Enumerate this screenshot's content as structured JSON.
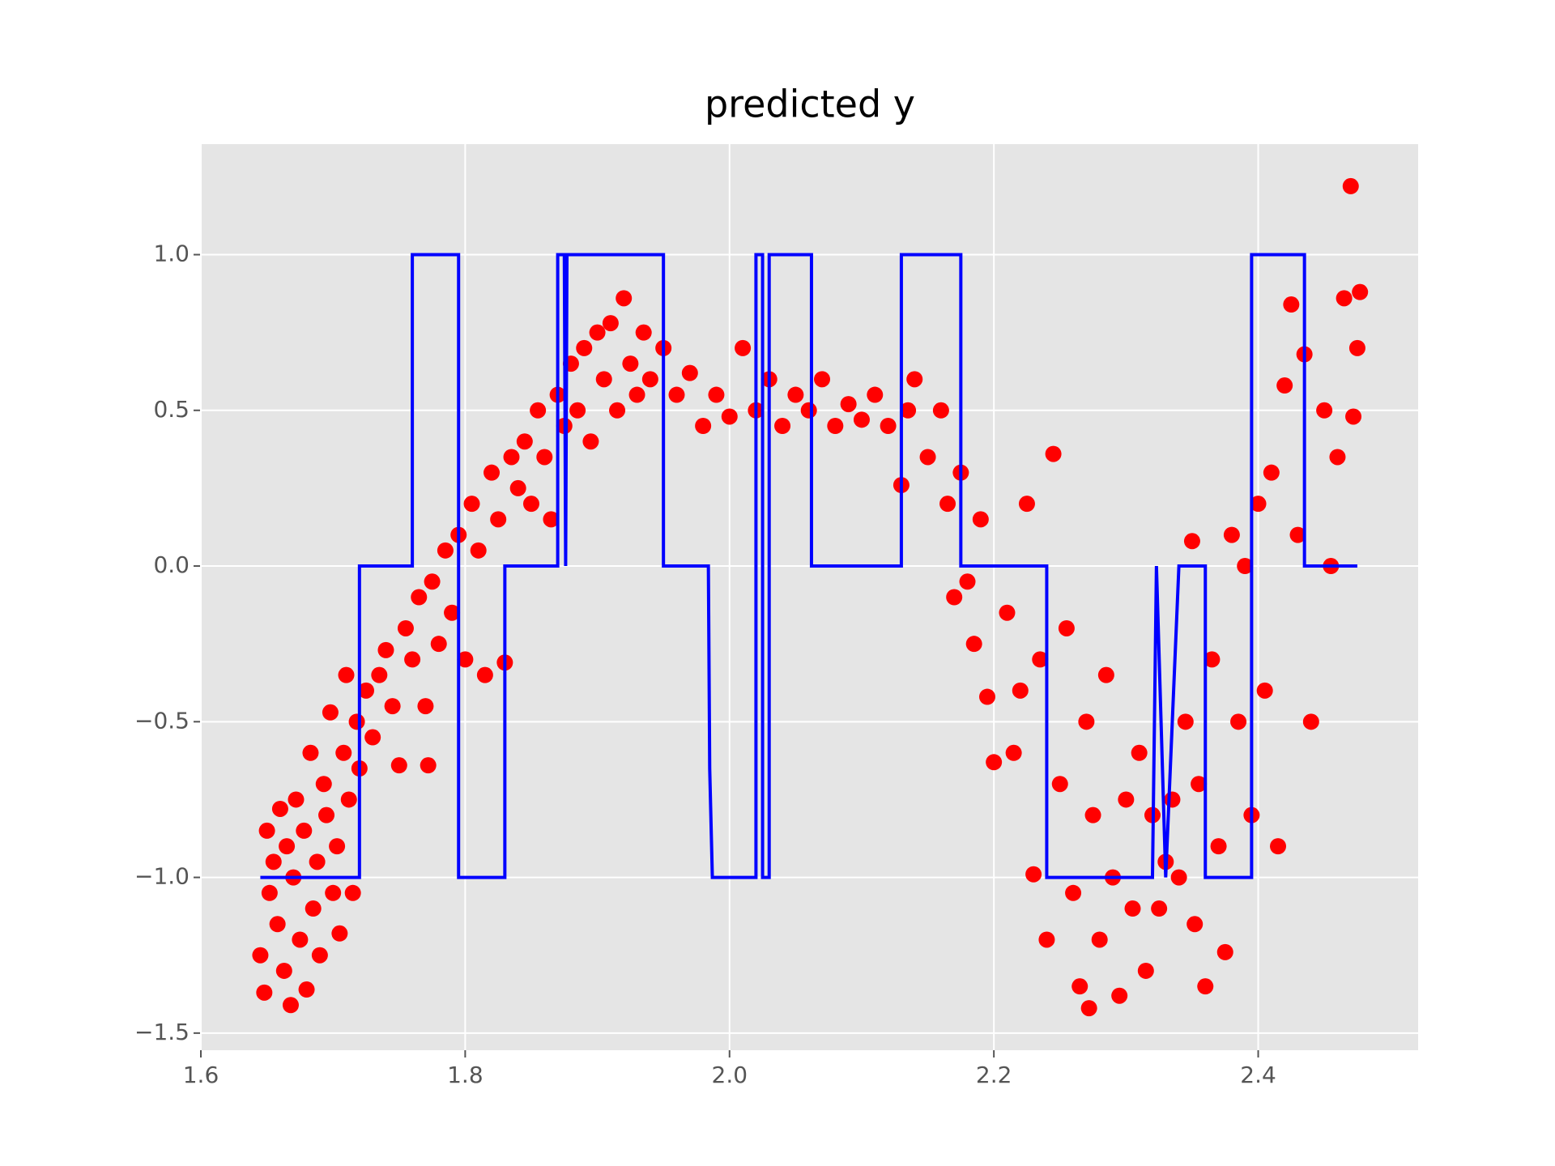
{
  "chart_data": {
    "type": "scatter",
    "title": "predicted y",
    "xlim": [
      1.6,
      2.521
    ],
    "ylim": [
      -1.555,
      1.355
    ],
    "xticks": [
      1.6,
      1.8,
      {
        "value": 2.0,
        "label": "2.0"
      },
      2.2,
      2.4
    ],
    "yticks": [
      {
        "value": -1.5,
        "label": "−1.5"
      },
      {
        "value": -1.0,
        "label": "−1.0"
      },
      {
        "value": -0.5,
        "label": "−0.5"
      },
      {
        "value": 0.0,
        "label": "0.0"
      },
      0.5,
      {
        "value": 1.0,
        "label": "1.0"
      }
    ],
    "grid": true,
    "background": "#e5e5e5",
    "series": [
      {
        "type": "scatter",
        "color": "#ff0000",
        "x": [
          1.645,
          1.648,
          1.65,
          1.652,
          1.655,
          1.658,
          1.66,
          1.663,
          1.665,
          1.668,
          1.67,
          1.672,
          1.675,
          1.678,
          1.68,
          1.683,
          1.685,
          1.688,
          1.69,
          1.693,
          1.695,
          1.698,
          1.7,
          1.703,
          1.705,
          1.708,
          1.71,
          1.712,
          1.715,
          1.718,
          1.72,
          1.725,
          1.73,
          1.735,
          1.74,
          1.745,
          1.75,
          1.755,
          1.76,
          1.765,
          1.77,
          1.772,
          1.775,
          1.78,
          1.785,
          1.79,
          1.795,
          1.8,
          1.805,
          1.81,
          1.815,
          1.82,
          1.825,
          1.83,
          1.835,
          1.84,
          1.845,
          1.85,
          1.855,
          1.86,
          1.865,
          1.87,
          1.875,
          1.88,
          1.885,
          1.89,
          1.895,
          1.9,
          1.905,
          1.91,
          1.915,
          1.92,
          1.925,
          1.93,
          1.935,
          1.94,
          1.95,
          1.96,
          1.97,
          1.98,
          1.99,
          2.0,
          2.01,
          2.02,
          2.03,
          2.04,
          2.05,
          2.06,
          2.07,
          2.08,
          2.09,
          2.1,
          2.11,
          2.12,
          2.13,
          2.135,
          2.14,
          2.15,
          2.16,
          2.165,
          2.17,
          2.175,
          2.18,
          2.185,
          2.19,
          2.195,
          2.2,
          2.21,
          2.215,
          2.22,
          2.225,
          2.23,
          2.235,
          2.24,
          2.245,
          2.25,
          2.255,
          2.26,
          2.265,
          2.27,
          2.272,
          2.275,
          2.28,
          2.285,
          2.29,
          2.295,
          2.3,
          2.305,
          2.31,
          2.315,
          2.32,
          2.325,
          2.33,
          2.335,
          2.34,
          2.345,
          2.35,
          2.352,
          2.355,
          2.36,
          2.365,
          2.37,
          2.375,
          2.38,
          2.385,
          2.39,
          2.395,
          2.4,
          2.405,
          2.41,
          2.415,
          2.42,
          2.425,
          2.43,
          2.435,
          2.44,
          2.45,
          2.455,
          2.46,
          2.465,
          2.47,
          2.472,
          2.475,
          2.477
        ],
        "values": [
          -1.25,
          -1.37,
          -0.85,
          -1.05,
          -0.95,
          -1.15,
          -0.78,
          -1.3,
          -0.9,
          -1.41,
          -1.0,
          -0.75,
          -1.2,
          -0.85,
          -1.36,
          -0.6,
          -1.1,
          -0.95,
          -1.25,
          -0.7,
          -0.8,
          -0.47,
          -1.05,
          -0.9,
          -1.18,
          -0.6,
          -0.35,
          -0.75,
          -1.05,
          -0.5,
          -0.65,
          -0.4,
          -0.55,
          -0.35,
          -0.27,
          -0.45,
          -0.64,
          -0.2,
          -0.3,
          -0.1,
          -0.45,
          -0.64,
          -0.05,
          -0.25,
          0.05,
          -0.15,
          0.1,
          -0.3,
          0.2,
          0.05,
          -0.35,
          0.3,
          0.15,
          -0.31,
          0.35,
          0.25,
          0.4,
          0.2,
          0.5,
          0.35,
          0.15,
          0.55,
          0.45,
          0.65,
          0.5,
          0.7,
          0.4,
          0.75,
          0.6,
          0.78,
          0.5,
          0.86,
          0.65,
          0.55,
          0.75,
          0.6,
          0.7,
          0.55,
          0.62,
          0.45,
          0.55,
          0.48,
          0.7,
          0.5,
          0.6,
          0.45,
          0.55,
          0.5,
          0.6,
          0.45,
          0.52,
          0.47,
          0.55,
          0.45,
          0.26,
          0.5,
          0.6,
          0.35,
          0.5,
          0.2,
          -0.1,
          0.3,
          -0.05,
          -0.25,
          0.15,
          -0.42,
          -0.63,
          -0.15,
          -0.6,
          -0.4,
          0.2,
          -0.99,
          -0.3,
          -1.2,
          0.36,
          -0.7,
          -0.2,
          -1.05,
          -1.35,
          -0.5,
          -1.42,
          -0.8,
          -1.2,
          -0.35,
          -1.0,
          -1.38,
          -0.75,
          -1.1,
          -0.6,
          -1.3,
          -0.8,
          -1.1,
          -0.95,
          -0.75,
          -1.0,
          -0.5,
          0.08,
          -1.15,
          -0.7,
          -1.35,
          -0.3,
          -0.9,
          -1.24,
          0.1,
          -0.5,
          0.0,
          -0.8,
          0.2,
          -0.4,
          0.3,
          -0.9,
          0.58,
          0.84,
          0.1,
          0.68,
          -0.5,
          0.5,
          0.0,
          0.35,
          0.86,
          1.22,
          0.48,
          0.7,
          0.88
        ]
      },
      {
        "type": "line",
        "color": "#0000ff",
        "x": [
          1.645,
          1.72,
          1.72,
          1.76,
          1.76,
          1.795,
          1.795,
          1.83,
          1.83,
          1.87,
          1.87,
          1.875,
          1.876,
          1.877,
          1.95,
          1.95,
          1.984,
          1.985,
          1.987,
          2.02,
          2.02,
          2.025,
          2.025,
          2.03,
          2.03,
          2.062,
          2.062,
          2.13,
          2.13,
          2.175,
          2.175,
          2.24,
          2.24,
          2.32,
          2.323,
          2.33,
          2.34,
          2.36,
          2.36,
          2.395,
          2.395,
          2.435,
          2.435,
          2.475
        ],
        "values": [
          -1,
          -1,
          0,
          0,
          1,
          1,
          -1,
          -1,
          0,
          0,
          1,
          1,
          0,
          1,
          1,
          0,
          0,
          -0.65,
          -1,
          -1,
          1,
          1,
          -1,
          -1,
          1,
          1,
          0,
          0,
          1,
          1,
          0,
          0,
          -1,
          -1,
          0,
          -1,
          0,
          0,
          -1,
          -1,
          1,
          1,
          0,
          0
        ]
      }
    ]
  }
}
